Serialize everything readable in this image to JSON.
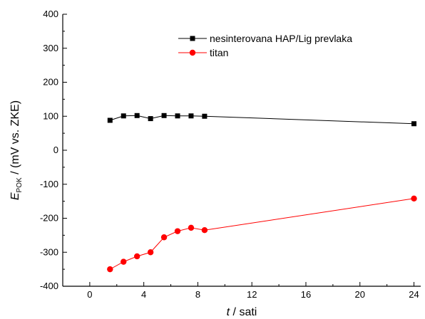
{
  "chart_data": {
    "type": "line",
    "xlabel_main": "t",
    "xlabel_unit": " / sati",
    "ylabel_main": "E",
    "ylabel_sub": "POK",
    "ylabel_unit": " / (mV vs. ZKE)",
    "xlim": [
      -2,
      24.5
    ],
    "ylim": [
      -400,
      400
    ],
    "x_ticks": [
      "0",
      "4",
      "8",
      "12",
      "16",
      "20",
      "24"
    ],
    "y_ticks": [
      "-400",
      "-300",
      "-200",
      "-100",
      "0",
      "100",
      "200",
      "300",
      "400"
    ],
    "grid": false,
    "legend_position": "top-right",
    "series": [
      {
        "name": "nesinterovana HAP/Lig prevlaka",
        "color": "#000000",
        "marker": "square",
        "x": [
          1.5,
          2.5,
          3.5,
          4.5,
          5.5,
          6.5,
          7.5,
          8.5,
          24
        ],
        "y": [
          88,
          101,
          102,
          93,
          102,
          101,
          101,
          100,
          78
        ]
      },
      {
        "name": "titan",
        "color": "#ff0000",
        "marker": "circle",
        "x": [
          1.5,
          2.5,
          3.5,
          4.5,
          5.5,
          6.5,
          7.5,
          8.5,
          24
        ],
        "y": [
          -350,
          -328,
          -312,
          -300,
          -256,
          -238,
          -228,
          -235,
          -142
        ]
      }
    ]
  }
}
